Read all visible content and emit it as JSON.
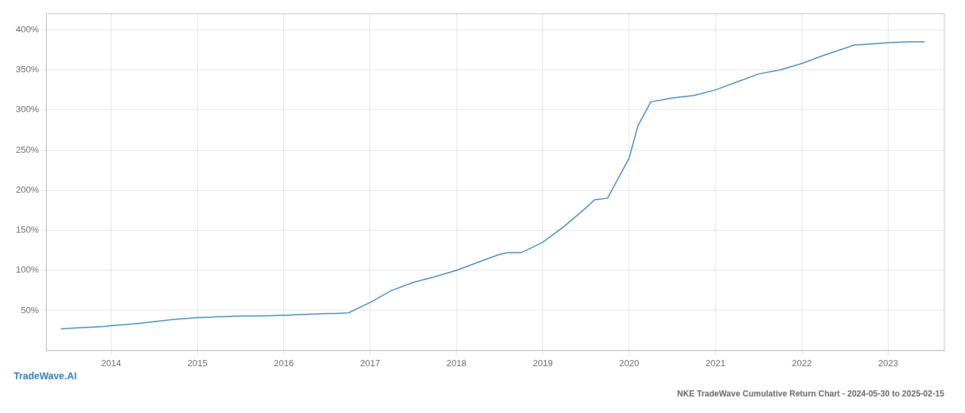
{
  "chart_data": {
    "type": "line",
    "title": "NKE TradeWave Cumulative Return Chart - 2024-05-30 to 2025-02-15",
    "annotations": [
      "TradeWave.AI"
    ],
    "color": "#2e7db5",
    "x": [
      2013.42,
      2013.58,
      2013.75,
      2013.92,
      2014.0,
      2014.25,
      2014.5,
      2014.75,
      2015.0,
      2015.25,
      2015.5,
      2015.75,
      2016.0,
      2016.25,
      2016.5,
      2016.6,
      2016.75,
      2017.0,
      2017.25,
      2017.5,
      2017.75,
      2018.0,
      2018.25,
      2018.5,
      2018.6,
      2018.75,
      2019.0,
      2019.25,
      2019.5,
      2019.6,
      2019.75,
      2020.0,
      2020.1,
      2020.25,
      2020.5,
      2020.75,
      2021.0,
      2021.25,
      2021.5,
      2021.75,
      2022.0,
      2022.25,
      2022.5,
      2022.6,
      2022.75,
      2023.0,
      2023.25,
      2023.42
    ],
    "values": [
      27,
      28,
      29,
      30,
      31,
      33,
      36,
      39,
      41,
      42,
      43,
      43,
      44,
      45,
      46,
      46,
      47,
      60,
      75,
      85,
      92,
      100,
      110,
      120,
      122,
      122,
      135,
      155,
      178,
      188,
      190,
      240,
      280,
      310,
      315,
      318,
      325,
      335,
      345,
      350,
      358,
      368,
      377,
      381,
      382,
      384,
      385,
      385
    ],
    "xlim": [
      2013.25,
      2023.65
    ],
    "xticks": [
      2014,
      2015,
      2016,
      2017,
      2018,
      2019,
      2020,
      2021,
      2022,
      2023
    ],
    "ylim": [
      0,
      420
    ],
    "yticks": [
      {
        "value": 50,
        "label": "50%"
      },
      {
        "value": 100,
        "label": "100%"
      },
      {
        "value": 150,
        "label": "150%"
      },
      {
        "value": 200,
        "label": "200%"
      },
      {
        "value": 250,
        "label": "250%"
      },
      {
        "value": 300,
        "label": "300%"
      },
      {
        "value": 350,
        "label": "350%"
      },
      {
        "value": 400,
        "label": "400%"
      }
    ],
    "grid": true
  }
}
